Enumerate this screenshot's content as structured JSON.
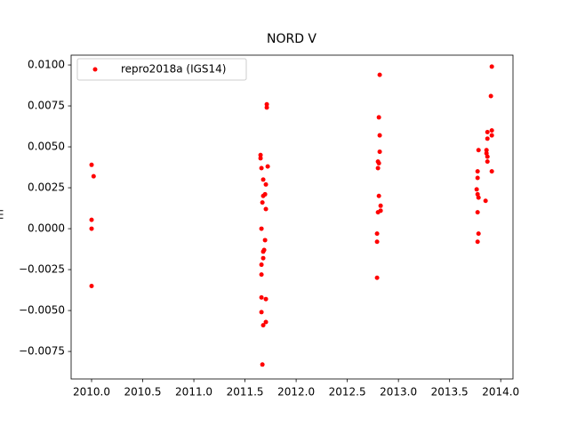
{
  "chart_data": {
    "type": "scatter",
    "title": "NORD V",
    "ylabel": "m",
    "series": [
      {
        "name": "repro2018a (IGS14)",
        "color": "#ff0000",
        "x": [
          2010.0,
          2010.02,
          2010.0,
          2010.0,
          2010.0,
          2011.713,
          2011.713,
          2011.652,
          2011.652,
          2011.722,
          2011.661,
          2011.678,
          2011.704,
          2011.696,
          2011.678,
          2011.67,
          2011.704,
          2011.661,
          2011.696,
          2011.687,
          2011.678,
          2011.678,
          2011.661,
          2011.661,
          2011.661,
          2011.704,
          2011.661,
          2011.704,
          2011.678,
          2011.67,
          2012.817,
          2012.809,
          2012.817,
          2012.817,
          2012.8,
          2012.809,
          2012.8,
          2012.809,
          2012.826,
          2012.826,
          2012.8,
          2012.791,
          2012.791,
          2012.791,
          2013.913,
          2013.904,
          2013.913,
          2013.87,
          2013.913,
          2013.87,
          2013.861,
          2013.861,
          2013.87,
          2013.87,
          2013.783,
          2013.774,
          2013.913,
          2013.774,
          2013.765,
          2013.774,
          2013.783,
          2013.852,
          2013.774,
          2013.783,
          2013.774
        ],
        "values": [
          0.0039,
          0.0032,
          0.00054,
          0.0,
          -0.0035,
          0.0076,
          0.0074,
          0.0045,
          0.0043,
          0.0038,
          0.0037,
          0.003,
          0.0027,
          0.0021,
          0.002,
          0.0016,
          0.0012,
          0.0,
          -0.0007,
          -0.0013,
          -0.0014,
          -0.0018,
          -0.0022,
          -0.0028,
          -0.0042,
          -0.0043,
          -0.0051,
          -0.0057,
          -0.0059,
          -0.0083,
          0.0094,
          0.0068,
          0.0057,
          0.0047,
          0.0041,
          0.004,
          0.0037,
          0.002,
          0.0014,
          0.0011,
          0.001,
          -0.0003,
          -0.0008,
          -0.003,
          0.0099,
          0.0081,
          0.006,
          0.0059,
          0.0057,
          0.0055,
          0.0048,
          0.0046,
          0.0044,
          0.0041,
          0.0048,
          0.0035,
          0.0035,
          0.0031,
          0.0024,
          0.0021,
          0.0019,
          0.0017,
          0.001,
          -0.0003,
          -0.0008
        ]
      }
    ],
    "xlim": [
      2009.8,
      2014.12
    ],
    "ylim": [
      -0.00918,
      0.0106
    ],
    "xticks": [
      {
        "value": 2010.0,
        "label": "2010.0"
      },
      {
        "value": 2010.5,
        "label": "2010.5"
      },
      {
        "value": 2011.0,
        "label": "2011.0"
      },
      {
        "value": 2011.5,
        "label": "2011.5"
      },
      {
        "value": 2012.0,
        "label": "2012.0"
      },
      {
        "value": 2012.5,
        "label": "2012.5"
      },
      {
        "value": 2013.0,
        "label": "2013.0"
      },
      {
        "value": 2013.5,
        "label": "2013.5"
      },
      {
        "value": 2014.0,
        "label": "2014.0"
      }
    ],
    "yticks": [
      {
        "value": -0.0075,
        "label": "−0.0075"
      },
      {
        "value": -0.005,
        "label": "−0.0050"
      },
      {
        "value": -0.0025,
        "label": "−0.0025"
      },
      {
        "value": 0,
        "label": "0.0000"
      },
      {
        "value": 0.0025,
        "label": "0.0025"
      },
      {
        "value": 0.005,
        "label": "0.0050"
      },
      {
        "value": 0.0075,
        "label": "0.0075"
      },
      {
        "value": 0.01,
        "label": "0.0100"
      }
    ],
    "legend": "upper left"
  }
}
